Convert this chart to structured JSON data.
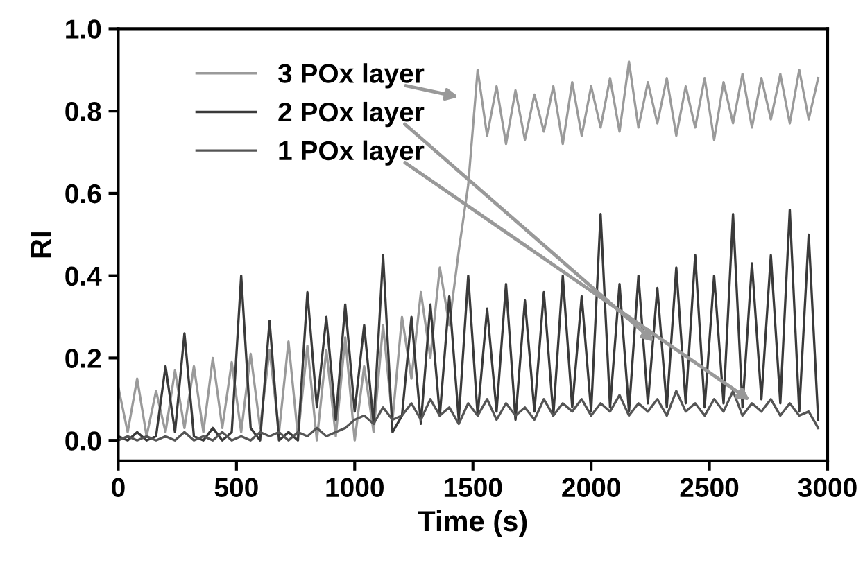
{
  "chart_data": {
    "type": "line",
    "xlabel": "Time (s)",
    "ylabel": "RI",
    "x": [
      0,
      40,
      80,
      120,
      160,
      200,
      240,
      280,
      320,
      360,
      400,
      440,
      480,
      520,
      560,
      600,
      640,
      680,
      720,
      760,
      800,
      840,
      880,
      920,
      960,
      1000,
      1040,
      1080,
      1120,
      1160,
      1200,
      1240,
      1280,
      1320,
      1360,
      1400,
      1440,
      1480,
      1520,
      1560,
      1600,
      1640,
      1680,
      1720,
      1760,
      1800,
      1840,
      1880,
      1920,
      1960,
      2000,
      2040,
      2080,
      2120,
      2160,
      2200,
      2240,
      2280,
      2320,
      2360,
      2400,
      2440,
      2480,
      2520,
      2560,
      2600,
      2640,
      2680,
      2720,
      2760,
      2800,
      2840,
      2880,
      2920,
      2960
    ],
    "series": [
      {
        "name": "3 POx layer",
        "color": "#9a9a9a",
        "values": [
          0.13,
          0.02,
          0.15,
          0.01,
          0.12,
          0.02,
          0.17,
          0.03,
          0.18,
          0.02,
          0.2,
          0.03,
          0.19,
          0.02,
          0.21,
          0.03,
          0.22,
          0.02,
          0.24,
          0.01,
          0.23,
          0.0,
          0.22,
          0.01,
          0.25,
          0.0,
          0.18,
          0.02,
          0.28,
          0.05,
          0.3,
          0.15,
          0.36,
          0.2,
          0.42,
          0.28,
          0.46,
          0.62,
          0.9,
          0.74,
          0.86,
          0.72,
          0.85,
          0.73,
          0.84,
          0.75,
          0.86,
          0.72,
          0.87,
          0.74,
          0.86,
          0.76,
          0.88,
          0.75,
          0.92,
          0.76,
          0.87,
          0.77,
          0.88,
          0.74,
          0.86,
          0.76,
          0.88,
          0.73,
          0.87,
          0.77,
          0.89,
          0.76,
          0.88,
          0.78,
          0.89,
          0.77,
          0.9,
          0.78,
          0.88
        ]
      },
      {
        "name": "2 POx layer",
        "color": "#3a3a3a",
        "values": [
          0.01,
          0.0,
          0.02,
          0.0,
          0.01,
          0.18,
          0.02,
          0.26,
          0.01,
          0.0,
          0.03,
          0.0,
          0.02,
          0.4,
          0.03,
          0.0,
          0.29,
          0.0,
          0.02,
          0.0,
          0.36,
          0.08,
          0.3,
          0.05,
          0.33,
          0.07,
          0.28,
          0.04,
          0.45,
          0.02,
          0.06,
          0.3,
          0.04,
          0.33,
          0.06,
          0.35,
          0.05,
          0.4,
          0.06,
          0.32,
          0.07,
          0.38,
          0.05,
          0.34,
          0.07,
          0.36,
          0.06,
          0.4,
          0.08,
          0.35,
          0.07,
          0.55,
          0.08,
          0.38,
          0.07,
          0.4,
          0.09,
          0.37,
          0.08,
          0.42,
          0.09,
          0.45,
          0.08,
          0.4,
          0.09,
          0.55,
          0.08,
          0.43,
          0.1,
          0.45,
          0.09,
          0.56,
          0.07,
          0.5,
          0.05
        ]
      },
      {
        "name": "1 POx layer",
        "color": "#555555",
        "values": [
          0.0,
          0.01,
          0.0,
          0.01,
          0.0,
          0.01,
          0.0,
          0.02,
          0.0,
          0.01,
          0.0,
          0.02,
          0.0,
          0.01,
          0.0,
          0.02,
          0.01,
          0.02,
          0.0,
          0.02,
          0.01,
          0.03,
          0.01,
          0.02,
          0.03,
          0.05,
          0.06,
          0.04,
          0.08,
          0.05,
          0.06,
          0.09,
          0.05,
          0.1,
          0.06,
          0.08,
          0.04,
          0.09,
          0.06,
          0.1,
          0.05,
          0.09,
          0.06,
          0.08,
          0.05,
          0.1,
          0.06,
          0.09,
          0.07,
          0.1,
          0.06,
          0.09,
          0.07,
          0.11,
          0.06,
          0.09,
          0.07,
          0.1,
          0.06,
          0.12,
          0.07,
          0.09,
          0.06,
          0.1,
          0.07,
          0.12,
          0.06,
          0.09,
          0.07,
          0.1,
          0.06,
          0.09,
          0.06,
          0.07,
          0.03
        ]
      }
    ],
    "xlim": [
      0,
      3000
    ],
    "xticks": [
      0,
      500,
      1000,
      1500,
      2000,
      2500,
      3000
    ],
    "ylim": [
      -0.05,
      1.0
    ],
    "yticks": [
      {
        "value": 0,
        "label": "0.0"
      },
      {
        "value": 0.2,
        "label": "0.2"
      },
      {
        "value": 0.4,
        "label": "0.4"
      },
      {
        "value": 0.6,
        "label": "0.6"
      },
      {
        "value": 0.8,
        "label": "0.8"
      },
      {
        "value": 1.0,
        "label": "1.0"
      }
    ],
    "grid": false,
    "legend": "top left",
    "marker": "none",
    "line_style": "solid"
  }
}
